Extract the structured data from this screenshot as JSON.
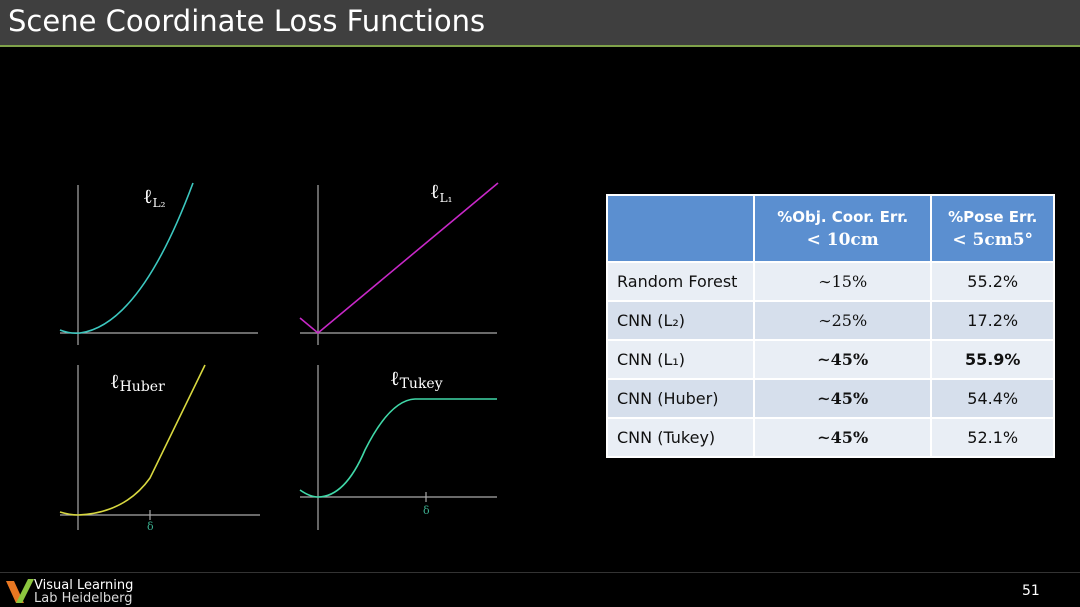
{
  "header": {
    "title": "Scene Coordinate Loss Functions"
  },
  "plots": [
    {
      "symbol": "ℓ",
      "subscript": "L₂"
    },
    {
      "symbol": "ℓ",
      "subscript": "L₁"
    },
    {
      "symbol": "ℓ",
      "subscript": "Huber",
      "tick": "δ"
    },
    {
      "symbol": "ℓ",
      "subscript": "Tukey",
      "tick": "δ"
    }
  ],
  "table": {
    "header": [
      [
        "%Obj. Coor. Err.",
        "< 10cm"
      ],
      [
        "%Pose Err.",
        "< 5cm5°"
      ]
    ],
    "rows": [
      [
        "Random Forest",
        "∼15%",
        "55.2%"
      ],
      [
        "CNN (L₂)",
        "∼25%",
        "17.2%"
      ],
      [
        "CNN (L₁)",
        "∼45%",
        "55.9%"
      ],
      [
        "CNN (Huber)",
        "∼45%",
        "54.4%"
      ],
      [
        "CNN (Tukey)",
        "∼45%",
        "52.1%"
      ]
    ]
  },
  "footer": {
    "logo": [
      "Visual Learning",
      "Lab Heidelberg"
    ],
    "page": "51"
  }
}
